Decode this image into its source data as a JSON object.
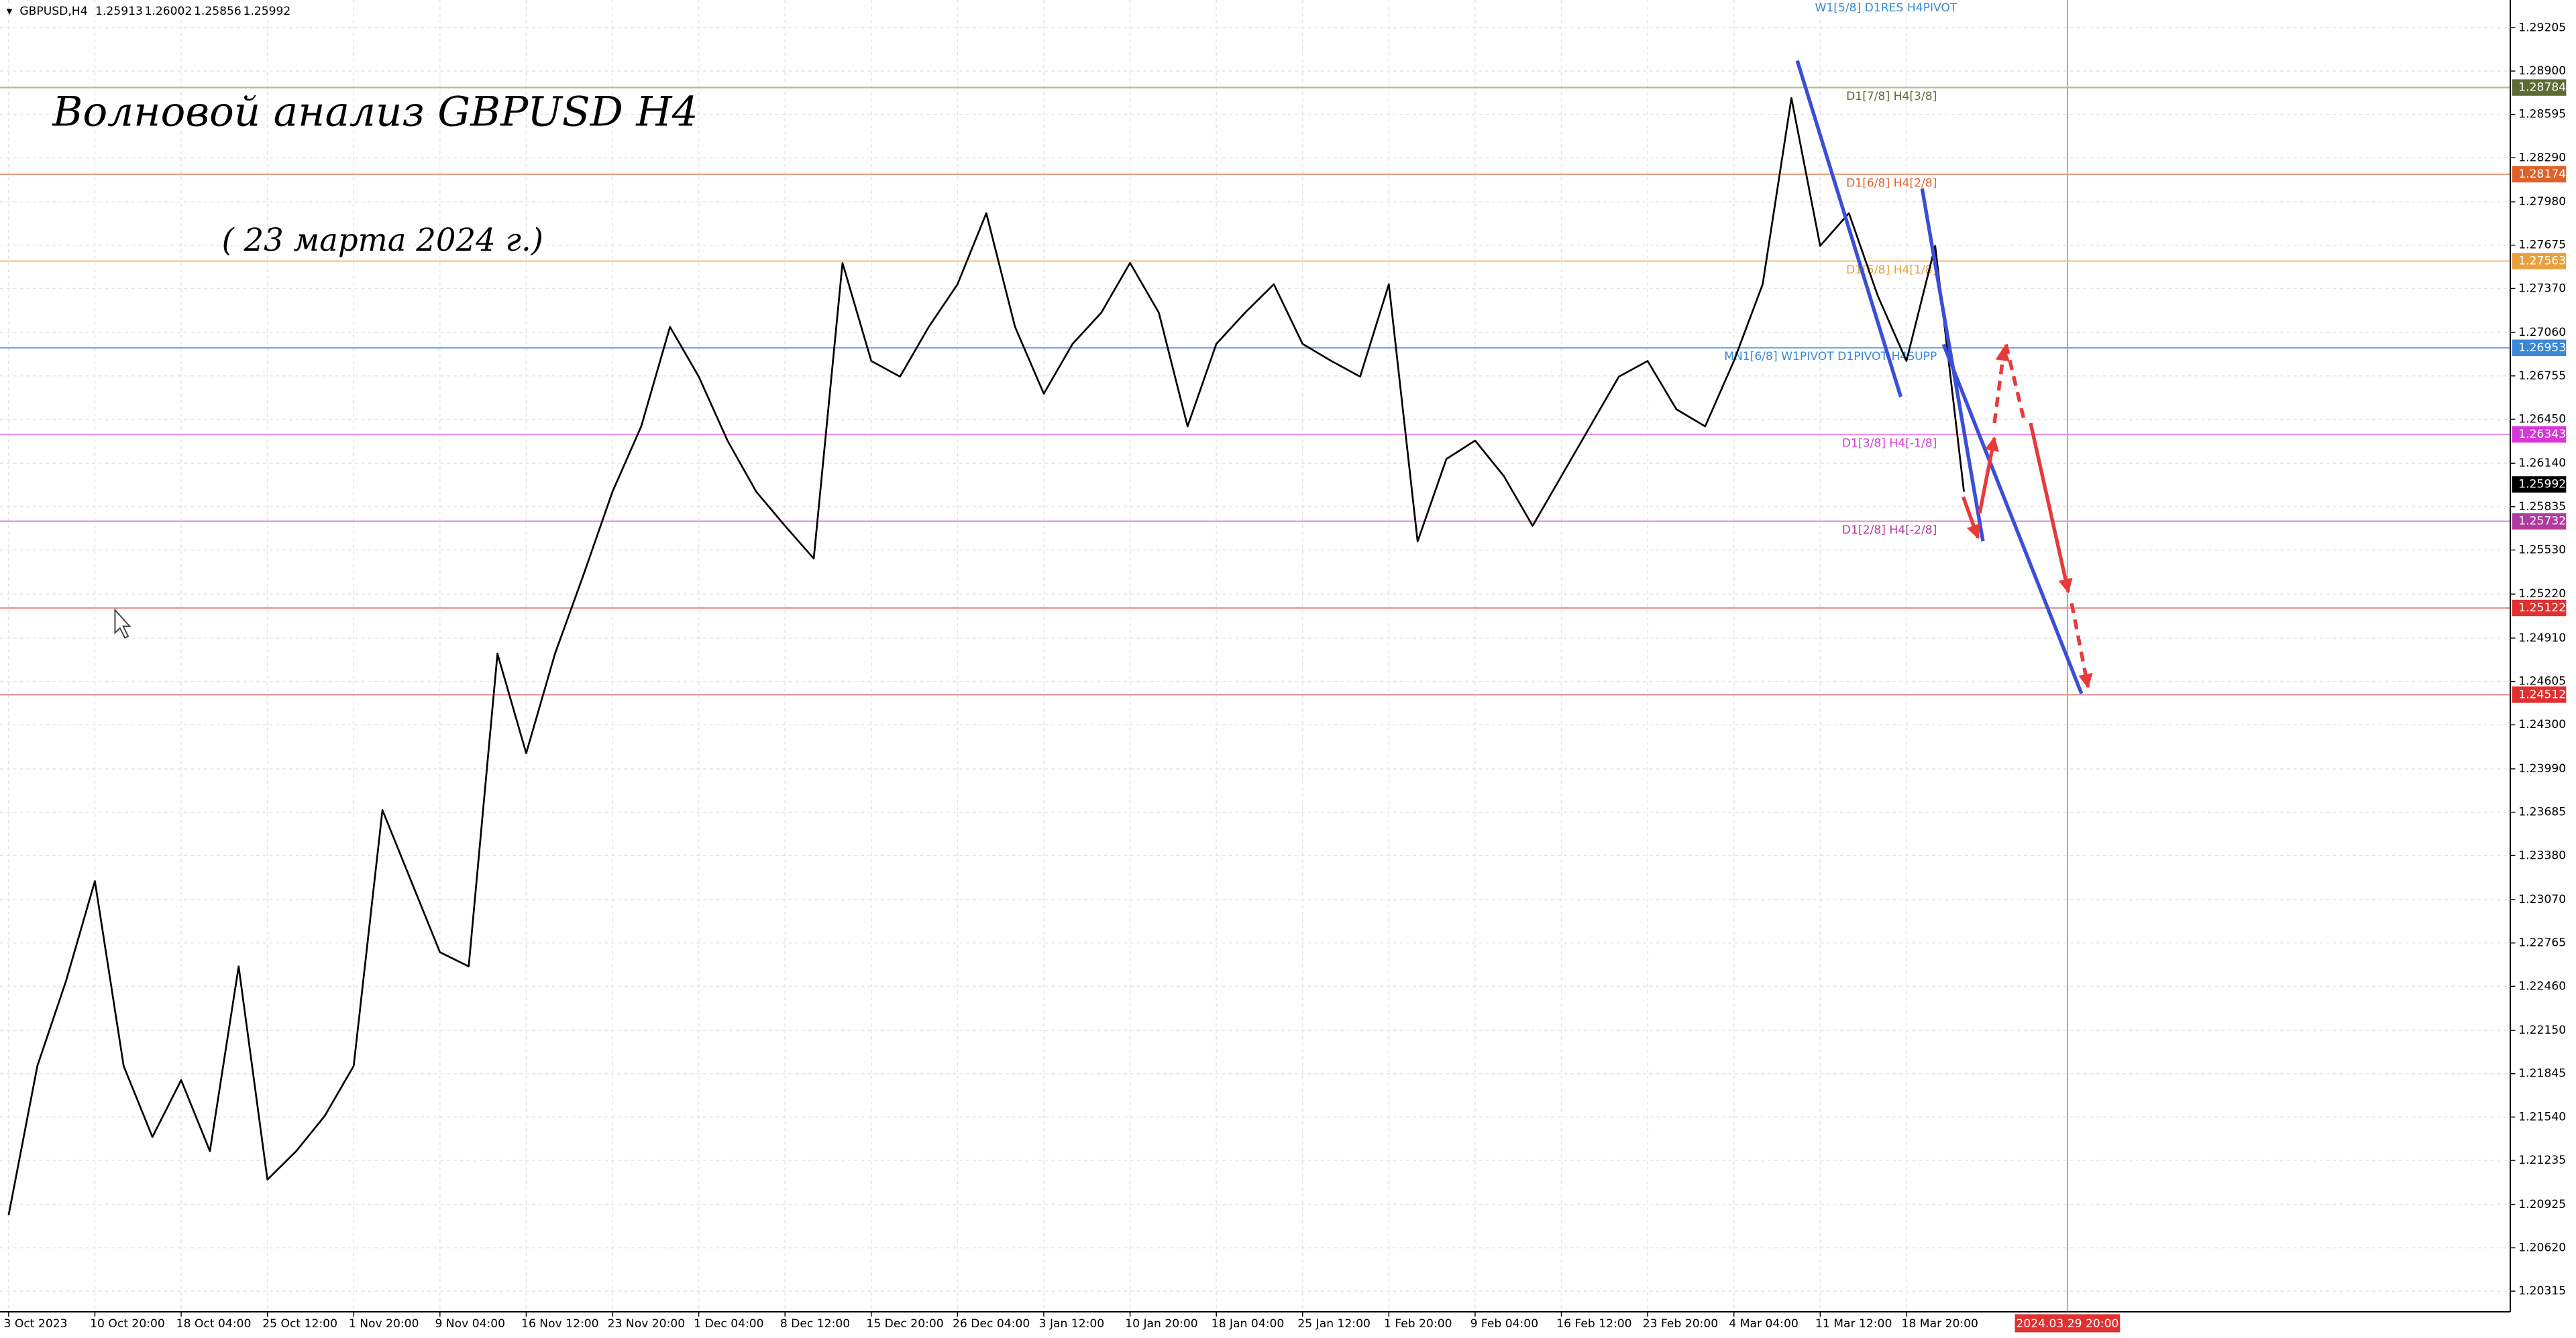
{
  "chart_data": {
    "type": "line",
    "symbol": "GBPUSD,H4",
    "ohlc_header": [
      1.25913,
      1.26002,
      1.25856,
      1.25992
    ],
    "title": "Волновой анализ GBPUSD H4",
    "subtitle": "( 23 марта 2024 г.)",
    "top_annotation": "W1[5/8] D1RES H4PIVOT",
    "color": "#000000",
    "values": [
      1.2085,
      1.219,
      1.225,
      1.232,
      1.219,
      1.214,
      1.218,
      1.213,
      1.226,
      1.211,
      1.213,
      1.2155,
      1.219,
      1.237,
      1.232,
      1.227,
      1.226,
      1.248,
      1.241,
      1.248,
      1.2536,
      1.2594,
      1.264,
      1.271,
      1.2675,
      1.263,
      1.2594,
      1.257,
      1.2547,
      1.2755,
      1.2686,
      1.2675,
      1.271,
      1.274,
      1.279,
      1.271,
      1.2663,
      1.2698,
      1.272,
      1.2755,
      1.272,
      1.264,
      1.2698,
      1.272,
      1.274,
      1.2698,
      1.2686,
      1.2675,
      1.274,
      1.2559,
      1.2617,
      1.263,
      1.2605,
      1.257,
      1.2605,
      1.264,
      1.2675,
      1.2686,
      1.2652,
      1.264,
      1.2686,
      1.274,
      1.2871,
      1.2767,
      1.279,
      1.2732,
      1.2686,
      1.2767,
      1.2594
    ],
    "xlim": [
      -0.3,
      87
    ],
    "xticks": [
      {
        "value": 0,
        "label": "3 Oct 2023"
      },
      {
        "value": 3,
        "label": "10 Oct 20:00"
      },
      {
        "value": 6,
        "label": "18 Oct 04:00"
      },
      {
        "value": 9,
        "label": "25 Oct 12:00"
      },
      {
        "value": 12,
        "label": "1 Nov 20:00"
      },
      {
        "value": 15,
        "label": "9 Nov 04:00"
      },
      {
        "value": 18,
        "label": "16 Nov 12:00"
      },
      {
        "value": 21,
        "label": "23 Nov 20:00"
      },
      {
        "value": 24,
        "label": "1 Dec 04:00"
      },
      {
        "value": 27,
        "label": "8 Dec 12:00"
      },
      {
        "value": 30,
        "label": "15 Dec 20:00"
      },
      {
        "value": 33,
        "label": "26 Dec 04:00"
      },
      {
        "value": 36,
        "label": "3 Jan 12:00"
      },
      {
        "value": 39,
        "label": "10 Jan 20:00"
      },
      {
        "value": 42,
        "label": "18 Jan 04:00"
      },
      {
        "value": 45,
        "label": "25 Jan 12:00"
      },
      {
        "value": 48,
        "label": "1 Feb 20:00"
      },
      {
        "value": 51,
        "label": "9 Feb 04:00"
      },
      {
        "value": 54,
        "label": "16 Feb 12:00"
      },
      {
        "value": 57,
        "label": "23 Feb 20:00"
      },
      {
        "value": 60,
        "label": "4 Mar 04:00"
      },
      {
        "value": 63,
        "label": "11 Mar 12:00"
      },
      {
        "value": 66,
        "label": "18 Mar 20:00"
      }
    ],
    "cursor_time": {
      "value": 71.6,
      "label": "2024.03.29 20:00"
    },
    "ylim": [
      1.2017,
      1.294
    ],
    "yticks": [
      1.29205,
      {
        "value": 1.289,
        "label": "1.28900"
      },
      1.28595,
      {
        "value": 1.2829,
        "label": "1.28290"
      },
      {
        "value": 1.2798,
        "label": "1.27980"
      },
      1.27675,
      {
        "value": 1.2737,
        "label": "1.27370"
      },
      {
        "value": 1.2706,
        "label": "1.27060"
      },
      1.26755,
      {
        "value": 1.2645,
        "label": "1.26450"
      },
      {
        "value": 1.2614,
        "label": "1.26140"
      },
      1.25835,
      {
        "value": 1.2553,
        "label": "1.25530"
      },
      {
        "value": 1.2522,
        "label": "1.25220"
      },
      {
        "value": 1.2491,
        "label": "1.24910"
      },
      1.24605,
      {
        "value": 1.243,
        "label": "1.24300"
      },
      {
        "value": 1.2399,
        "label": "1.23990"
      },
      1.23685,
      {
        "value": 1.2338,
        "label": "1.23380"
      },
      {
        "value": 1.2307,
        "label": "1.23070"
      },
      1.22765,
      {
        "value": 1.2246,
        "label": "1.22460"
      },
      {
        "value": 1.2215,
        "label": "1.22150"
      },
      1.21845,
      {
        "value": 1.2154,
        "label": "1.21540"
      },
      1.21235,
      1.20925,
      {
        "value": 1.2062,
        "label": "1.20620"
      },
      1.20315
    ],
    "grid": true,
    "levels": [
      {
        "price": 1.28784,
        "label": "D1[7/8] H4[3/8]",
        "color": "#5e6b34",
        "line_color": "#b8b890"
      },
      {
        "price": 1.28174,
        "label": "D1[6/8] H4[2/8]",
        "color": "#e0602a",
        "line_color": "#e8a080"
      },
      {
        "price": 1.27563,
        "label": "D1[5/8] H4[1/8]",
        "color": "#e8a040",
        "line_color": "#f0c890"
      },
      {
        "price": 1.26953,
        "label": "MN1[6/8] W1PIVOT D1PIVOT H4SUPP",
        "color": "#3a88d8",
        "line_color": "#70a8e0"
      },
      {
        "price": 1.26343,
        "label": "D1[3/8] H4[-1/8]",
        "color": "#d836d8",
        "line_color": "#e890e8"
      },
      {
        "price": 1.25732,
        "label": "D1[2/8] H4[-2/8]",
        "color": "#b03aa0",
        "line_color": "#d898d0"
      },
      {
        "price": 1.25122,
        "color": "#e03030",
        "line_color": "#e89090"
      },
      {
        "price": 1.24512,
        "color": "#e03030",
        "line_color": "#e89090"
      }
    ],
    "current_price": 1.25992
  }
}
